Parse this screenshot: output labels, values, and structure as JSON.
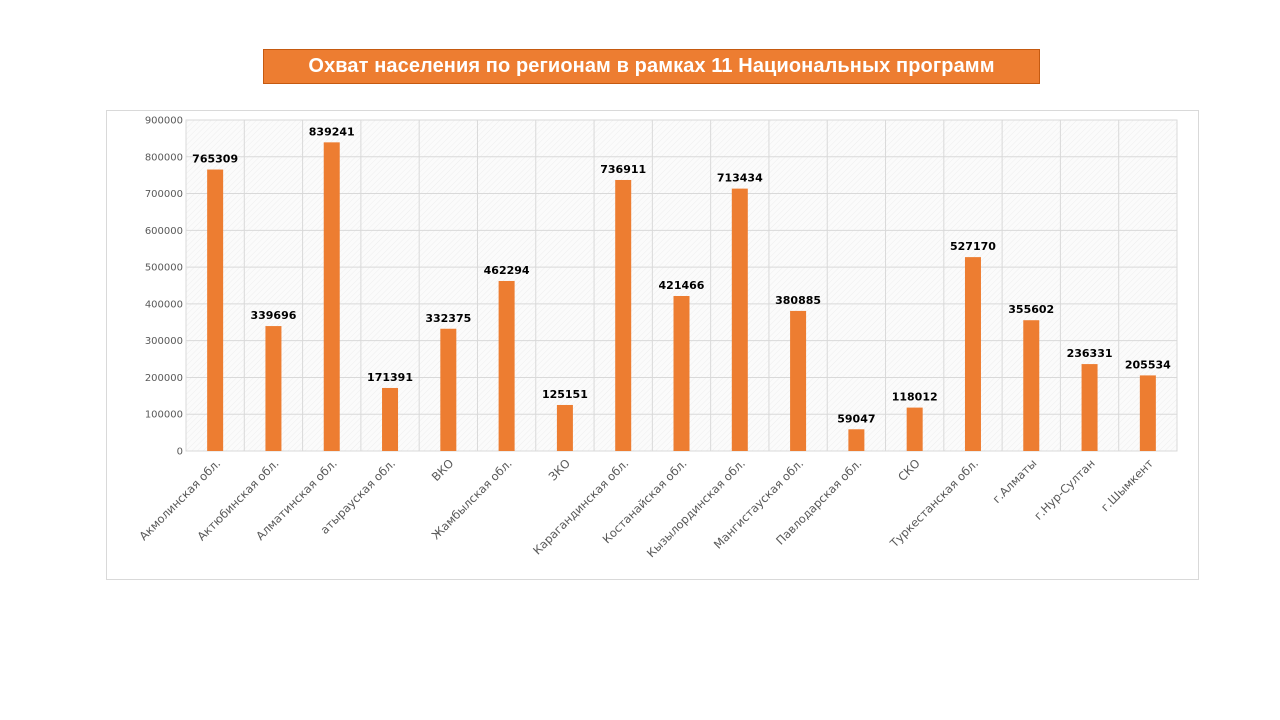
{
  "slide": {
    "title": "Охват населения по регионам в рамках 11 Национальных программ"
  },
  "colors": {
    "bar": "#ed7d31",
    "title_bg": "#ed7d31",
    "grid": "#d9d9d9"
  },
  "chart_data": {
    "type": "bar",
    "title": "Охват населения по регионам в рамках 11 Национальных программ",
    "xlabel": "",
    "ylabel": "",
    "ylim": [
      0,
      900000
    ],
    "yticks": [
      0,
      100000,
      200000,
      300000,
      400000,
      500000,
      600000,
      700000,
      800000,
      900000
    ],
    "grid": true,
    "legend": "none",
    "categories": [
      "Акмолинская обл.",
      "Актюбинская обл.",
      "Алматинская обл.",
      "атырауская обл.",
      "ВКО",
      "Жамбылская обл.",
      "ЗКО",
      "Карагандинская обл.",
      "Костанайская обл.",
      "Кызылординская обл.",
      "Мангистауская обл.",
      "Павлодарская обл.",
      "СКО",
      "Туркестанская обл.",
      "г.Алматы",
      "г.Нур-Султан",
      "г.Шымкент"
    ],
    "values": [
      765309,
      339696,
      839241,
      171391,
      332375,
      462294,
      125151,
      736911,
      421466,
      713434,
      380885,
      59047,
      118012,
      527170,
      355602,
      236331,
      205534
    ]
  }
}
